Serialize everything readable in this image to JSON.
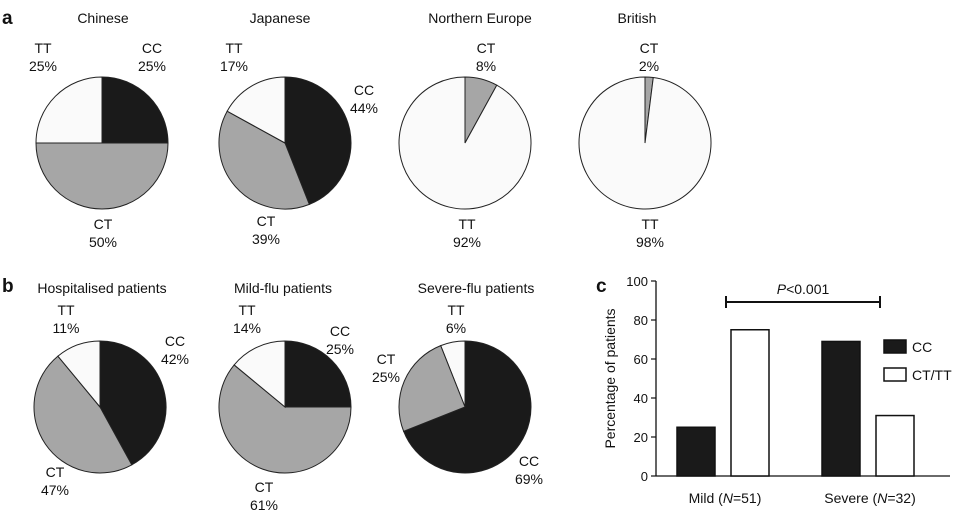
{
  "colors": {
    "CC": "#1a1a1a",
    "CT": "#a6a6a6",
    "TT": "#fafafa",
    "stroke": "#222222"
  },
  "panel_labels": {
    "a": "a",
    "b": "b",
    "c": "c"
  },
  "chart_data": [
    {
      "type": "pie",
      "panel": "a",
      "title": "Chinese",
      "slices": [
        {
          "label": "CC",
          "value": 25,
          "text": "25%"
        },
        {
          "label": "CT",
          "value": 50,
          "text": "50%"
        },
        {
          "label": "TT",
          "value": 25,
          "text": "25%"
        }
      ]
    },
    {
      "type": "pie",
      "panel": "a",
      "title": "Japanese",
      "slices": [
        {
          "label": "CC",
          "value": 44,
          "text": "44%"
        },
        {
          "label": "CT",
          "value": 39,
          "text": "39%"
        },
        {
          "label": "TT",
          "value": 17,
          "text": "17%"
        }
      ]
    },
    {
      "type": "pie",
      "panel": "a",
      "title": "Northern   Europe",
      "slices": [
        {
          "label": "CT",
          "value": 8,
          "text": "8%"
        },
        {
          "label": "TT",
          "value": 92,
          "text": "92%"
        }
      ]
    },
    {
      "type": "pie",
      "panel": "a",
      "title": "British",
      "slices": [
        {
          "label": "CT",
          "value": 2,
          "text": "2%"
        },
        {
          "label": "TT",
          "value": 98,
          "text": "98%"
        }
      ]
    },
    {
      "type": "pie",
      "panel": "b",
      "title": "Hospitalised patients",
      "slices": [
        {
          "label": "CC",
          "value": 42,
          "text": "42%"
        },
        {
          "label": "CT",
          "value": 47,
          "text": "47%"
        },
        {
          "label": "TT",
          "value": 11,
          "text": "11%"
        }
      ]
    },
    {
      "type": "pie",
      "panel": "b",
      "title": "Mild-flu patients",
      "slices": [
        {
          "label": "CC",
          "value": 25,
          "text": "25%"
        },
        {
          "label": "CT",
          "value": 61,
          "text": "61%"
        },
        {
          "label": "TT",
          "value": 14,
          "text": "14%"
        }
      ]
    },
    {
      "type": "pie",
      "panel": "b",
      "title": "Severe-flu patients",
      "slices": [
        {
          "label": "CC",
          "value": 69,
          "text": "69%"
        },
        {
          "label": "CT",
          "value": 25,
          "text": "25%"
        },
        {
          "label": "TT",
          "value": 6,
          "text": "6%"
        }
      ]
    },
    {
      "type": "bar",
      "panel": "c",
      "ylabel": "Percentage of patients",
      "ylim": [
        0,
        100
      ],
      "yticks": [
        0,
        20,
        40,
        60,
        80,
        100
      ],
      "categories": [
        {
          "name": "Mild",
          "n_label": "N",
          "n_value": "=51"
        },
        {
          "name": "Severe",
          "n_label": "N",
          "n_value": "=32"
        }
      ],
      "series": [
        {
          "name": "CC",
          "values": [
            25,
            69
          ]
        },
        {
          "name": "CT/TT",
          "values": [
            75,
            31
          ]
        }
      ],
      "annotation": {
        "p_symbol": "P",
        "p_text": "<0.001"
      },
      "legend_position": "right"
    }
  ]
}
